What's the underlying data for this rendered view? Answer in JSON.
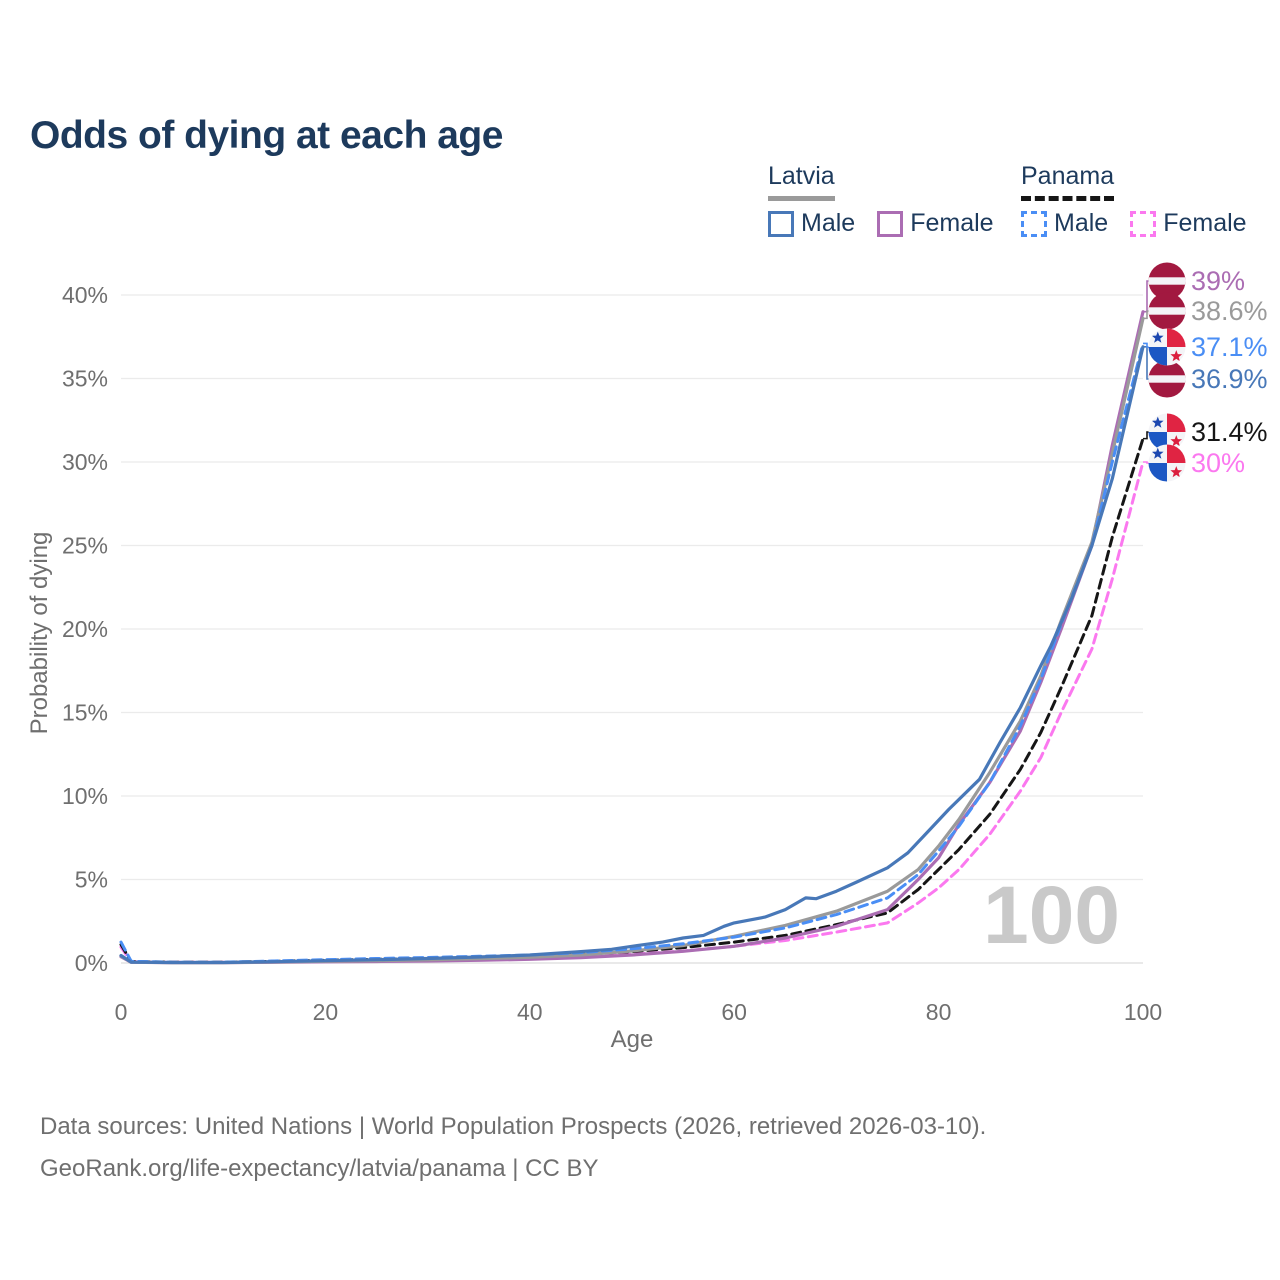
{
  "app": {
    "title": "Odds of dying at each age"
  },
  "legend": {
    "groups": [
      {
        "country": "Latvia",
        "underline_style": "solid",
        "underline_color": "#9a9a9a",
        "items": [
          {
            "label": "Male",
            "color": "#4878b8",
            "dashed": false
          },
          {
            "label": "Female",
            "color": "#ab6db3",
            "dashed": false
          }
        ]
      },
      {
        "country": "Panama",
        "underline_style": "dashed",
        "underline_color": "#161616",
        "items": [
          {
            "label": "Male",
            "color": "#4a8ef5",
            "dashed": true
          },
          {
            "label": "Female",
            "color": "#fb78ef",
            "dashed": true
          }
        ]
      }
    ]
  },
  "chart_data": {
    "type": "line",
    "title": "Odds of dying at each age",
    "xlabel": "Age",
    "ylabel": "Probability of dying",
    "xlim": [
      0,
      100
    ],
    "ylim": [
      0,
      40
    ],
    "x_ticks": [
      0,
      20,
      40,
      60,
      80,
      100
    ],
    "y_ticks": [
      0,
      5,
      10,
      15,
      20,
      25,
      30,
      35,
      40
    ],
    "y_tick_suffix": "%",
    "grid": "horizontal",
    "legend_position": "top-right",
    "watermark": "100",
    "series": [
      {
        "name": "Latvia — Male",
        "country": "Latvia",
        "sex": "Male",
        "color": "#4878b8",
        "dash": false,
        "flag": "lv",
        "end_label": "36.9%",
        "points": [
          [
            0,
            0.45
          ],
          [
            1,
            0.05
          ],
          [
            5,
            0.03
          ],
          [
            10,
            0.03
          ],
          [
            15,
            0.08
          ],
          [
            20,
            0.14
          ],
          [
            25,
            0.2
          ],
          [
            30,
            0.27
          ],
          [
            35,
            0.36
          ],
          [
            40,
            0.48
          ],
          [
            45,
            0.68
          ],
          [
            48,
            0.82
          ],
          [
            50,
            1.0
          ],
          [
            53,
            1.25
          ],
          [
            55,
            1.5
          ],
          [
            57,
            1.65
          ],
          [
            59,
            2.2
          ],
          [
            60,
            2.4
          ],
          [
            63,
            2.75
          ],
          [
            65,
            3.2
          ],
          [
            67,
            3.9
          ],
          [
            68,
            3.85
          ],
          [
            70,
            4.3
          ],
          [
            72,
            4.85
          ],
          [
            75,
            5.7
          ],
          [
            77,
            6.6
          ],
          [
            79,
            7.9
          ],
          [
            81,
            9.2
          ],
          [
            84,
            11.0
          ],
          [
            86,
            13.2
          ],
          [
            88,
            15.3
          ],
          [
            90,
            17.8
          ],
          [
            91,
            19.0
          ],
          [
            93,
            21.8
          ],
          [
            95,
            25.0
          ],
          [
            97,
            29.0
          ],
          [
            100,
            36.9
          ]
        ]
      },
      {
        "name": "Latvia — Female",
        "country": "Latvia",
        "sex": "Female",
        "color": "#ab6db3",
        "dash": false,
        "flag": "lv",
        "end_label": "39%",
        "points": [
          [
            0,
            0.38
          ],
          [
            1,
            0.04
          ],
          [
            5,
            0.02
          ],
          [
            10,
            0.02
          ],
          [
            15,
            0.04
          ],
          [
            20,
            0.07
          ],
          [
            25,
            0.09
          ],
          [
            30,
            0.12
          ],
          [
            35,
            0.16
          ],
          [
            40,
            0.22
          ],
          [
            45,
            0.32
          ],
          [
            50,
            0.48
          ],
          [
            55,
            0.7
          ],
          [
            60,
            1.0
          ],
          [
            65,
            1.5
          ],
          [
            70,
            2.2
          ],
          [
            75,
            3.2
          ],
          [
            78,
            5.0
          ],
          [
            80,
            6.3
          ],
          [
            82,
            8.3
          ],
          [
            85,
            10.8
          ],
          [
            88,
            13.9
          ],
          [
            90,
            16.8
          ],
          [
            92,
            20.0
          ],
          [
            95,
            25.0
          ],
          [
            97,
            31.0
          ],
          [
            100,
            39.0
          ]
        ]
      },
      {
        "name": "Latvia — All",
        "country": "Latvia",
        "sex": "All",
        "color": "#9a9a9a",
        "dash": false,
        "flag": "lv",
        "end_label": "38.6%",
        "points": [
          [
            0,
            0.42
          ],
          [
            1,
            0.045
          ],
          [
            5,
            0.025
          ],
          [
            10,
            0.025
          ],
          [
            15,
            0.06
          ],
          [
            20,
            0.1
          ],
          [
            25,
            0.14
          ],
          [
            30,
            0.19
          ],
          [
            35,
            0.26
          ],
          [
            40,
            0.34
          ],
          [
            45,
            0.48
          ],
          [
            50,
            0.72
          ],
          [
            55,
            1.05
          ],
          [
            60,
            1.6
          ],
          [
            65,
            2.25
          ],
          [
            70,
            3.1
          ],
          [
            75,
            4.3
          ],
          [
            78,
            5.6
          ],
          [
            80,
            7.0
          ],
          [
            82,
            8.6
          ],
          [
            85,
            11.4
          ],
          [
            88,
            14.5
          ],
          [
            90,
            17.2
          ],
          [
            92,
            20.5
          ],
          [
            95,
            25.2
          ],
          [
            97,
            30.5
          ],
          [
            100,
            38.6
          ]
        ]
      },
      {
        "name": "Panama — Male",
        "country": "Panama",
        "sex": "Male",
        "color": "#4a8ef5",
        "dash": true,
        "flag": "pa",
        "end_label": "37.1%",
        "points": [
          [
            0,
            1.25
          ],
          [
            1,
            0.1
          ],
          [
            5,
            0.05
          ],
          [
            10,
            0.05
          ],
          [
            15,
            0.12
          ],
          [
            20,
            0.2
          ],
          [
            25,
            0.27
          ],
          [
            30,
            0.33
          ],
          [
            35,
            0.4
          ],
          [
            40,
            0.48
          ],
          [
            45,
            0.62
          ],
          [
            50,
            0.85
          ],
          [
            55,
            1.15
          ],
          [
            60,
            1.55
          ],
          [
            65,
            2.1
          ],
          [
            70,
            2.9
          ],
          [
            75,
            3.9
          ],
          [
            78,
            5.3
          ],
          [
            80,
            6.7
          ],
          [
            82,
            8.2
          ],
          [
            85,
            10.8
          ],
          [
            88,
            14.2
          ],
          [
            90,
            17.0
          ],
          [
            92,
            20.3
          ],
          [
            95,
            25.0
          ],
          [
            97,
            30.0
          ],
          [
            100,
            37.1
          ]
        ]
      },
      {
        "name": "Panama — All",
        "country": "Panama",
        "sex": "All",
        "color": "#161616",
        "dash": true,
        "flag": "pa",
        "end_label": "31.4%",
        "points": [
          [
            0,
            1.1
          ],
          [
            1,
            0.09
          ],
          [
            5,
            0.045
          ],
          [
            10,
            0.045
          ],
          [
            15,
            0.1
          ],
          [
            20,
            0.16
          ],
          [
            25,
            0.22
          ],
          [
            30,
            0.27
          ],
          [
            35,
            0.33
          ],
          [
            40,
            0.4
          ],
          [
            45,
            0.52
          ],
          [
            50,
            0.68
          ],
          [
            55,
            0.92
          ],
          [
            60,
            1.25
          ],
          [
            65,
            1.65
          ],
          [
            70,
            2.3
          ],
          [
            75,
            3.0
          ],
          [
            78,
            4.4
          ],
          [
            80,
            5.6
          ],
          [
            82,
            6.8
          ],
          [
            85,
            8.9
          ],
          [
            88,
            11.6
          ],
          [
            90,
            13.8
          ],
          [
            92,
            16.5
          ],
          [
            95,
            20.8
          ],
          [
            97,
            25.5
          ],
          [
            100,
            31.4
          ]
        ]
      },
      {
        "name": "Panama — Female",
        "country": "Panama",
        "sex": "Female",
        "color": "#fb78ef",
        "dash": true,
        "flag": "pa",
        "end_label": "30%",
        "points": [
          [
            0,
            0.95
          ],
          [
            1,
            0.08
          ],
          [
            5,
            0.04
          ],
          [
            10,
            0.04
          ],
          [
            15,
            0.07
          ],
          [
            20,
            0.11
          ],
          [
            25,
            0.15
          ],
          [
            30,
            0.19
          ],
          [
            35,
            0.24
          ],
          [
            40,
            0.3
          ],
          [
            45,
            0.4
          ],
          [
            50,
            0.52
          ],
          [
            55,
            0.72
          ],
          [
            60,
            1.0
          ],
          [
            65,
            1.35
          ],
          [
            70,
            1.85
          ],
          [
            75,
            2.4
          ],
          [
            78,
            3.6
          ],
          [
            80,
            4.5
          ],
          [
            82,
            5.6
          ],
          [
            85,
            7.7
          ],
          [
            88,
            10.3
          ],
          [
            90,
            12.3
          ],
          [
            92,
            15.0
          ],
          [
            95,
            18.8
          ],
          [
            97,
            23.0
          ],
          [
            100,
            30.0
          ]
        ]
      }
    ]
  },
  "footer": {
    "line1": "Data sources: United Nations | World Population Prospects (2026, retrieved 2026-03-10).",
    "line2": "GeoRank.org/life-expectancy/latvia/panama | CC BY"
  }
}
